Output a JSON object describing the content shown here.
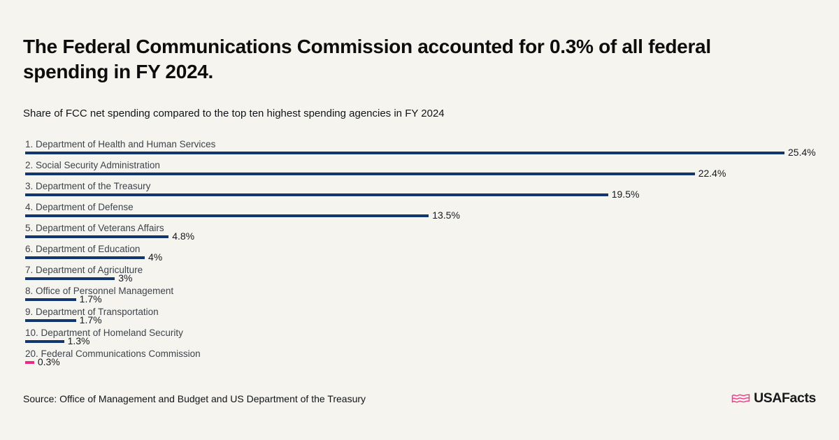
{
  "page": {
    "background_color": "#f5f4ee"
  },
  "header": {
    "title": "The Federal Communications Commission accounted for 0.3% of all federal spending in FY 2024.",
    "subtitle": "Share of FCC net spending compared to the top ten highest spending agencies in FY 2024"
  },
  "chart_data": {
    "type": "bar",
    "orientation": "horizontal",
    "unit": "percent",
    "xlim": [
      0,
      25.4
    ],
    "grid": false,
    "legend": "none",
    "categories": [
      "1. Department of Health and Human Services",
      "2. Social Security Administration",
      "3. Department of the Treasury",
      "4. Department of Defense",
      "5. Department of Veterans Affairs",
      "6. Department of Education",
      "7. Department of Agriculture",
      "8. Office of Personnel Management",
      "9. Department of Transportation",
      "10. Department of Homeland Security",
      "20. Federal Communications Commission"
    ],
    "values": [
      25.4,
      22.4,
      19.5,
      13.5,
      4.8,
      4,
      3,
      1.7,
      1.7,
      1.3,
      0.3
    ],
    "value_labels": [
      "25.4%",
      "22.4%",
      "19.5%",
      "13.5%",
      "4.8%",
      "4%",
      "3%",
      "1.7%",
      "1.7%",
      "1.3%",
      "0.3%"
    ],
    "highlight_index": 10,
    "bar_color_default": "#12366f",
    "bar_color_highlight": "#ec2a85"
  },
  "footer": {
    "source": "Source: Office of Management and Budget and US Department of the Treasury",
    "logo": {
      "icon": "usafacts-flag-icon",
      "icon_color": "#f0418c",
      "text": "USAFacts"
    }
  }
}
